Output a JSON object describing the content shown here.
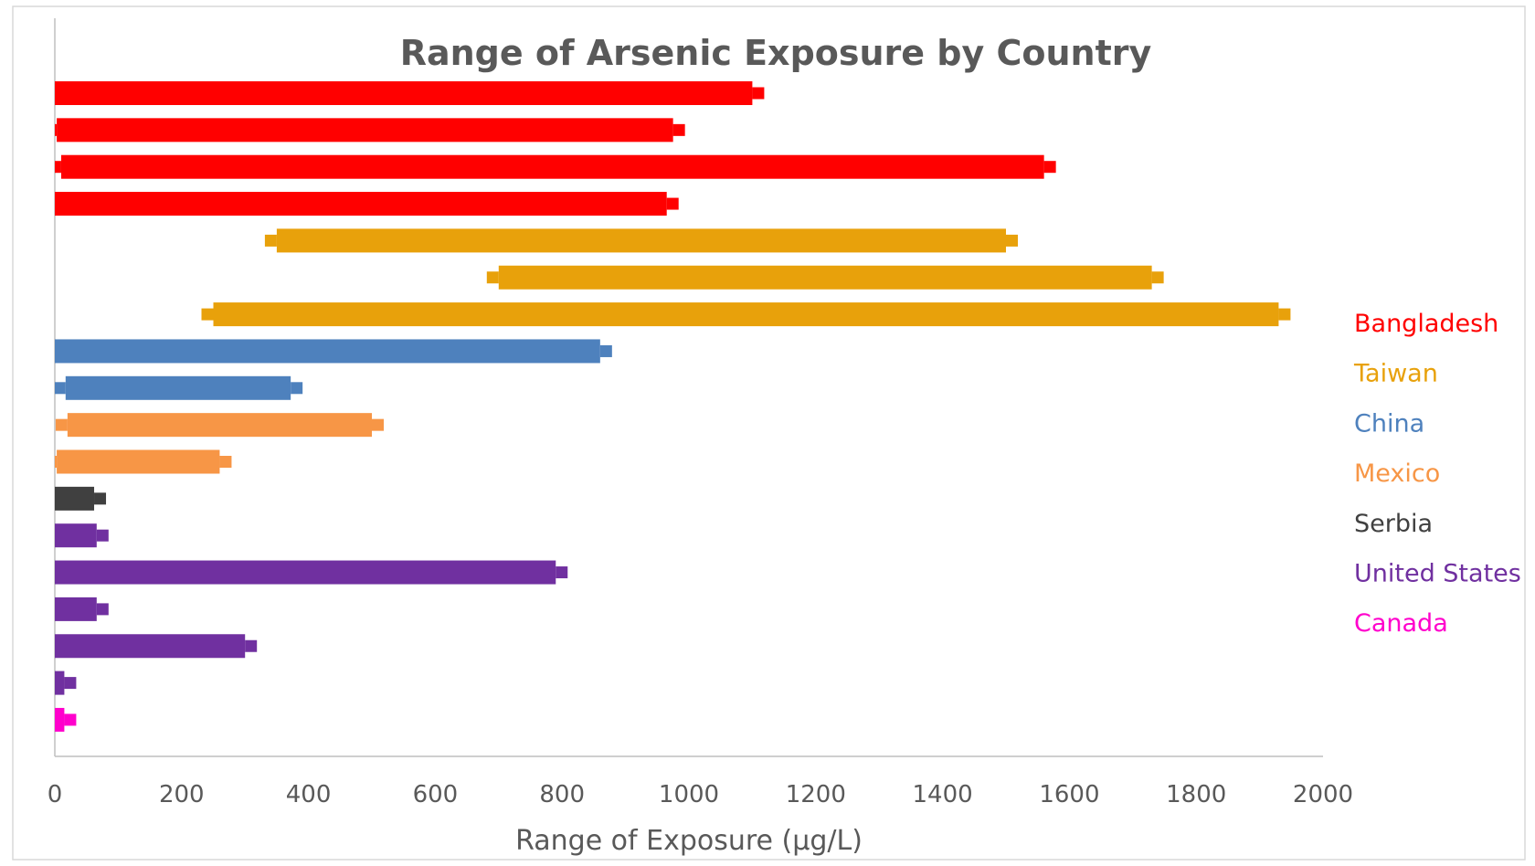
{
  "chart_data": {
    "type": "bar",
    "orientation": "horizontal",
    "title": "Range of Arsenic Exposure by Country",
    "xlabel": "Range of Exposure (µg/L)",
    "ylabel": "",
    "xlim": [
      0,
      2000
    ],
    "x_ticks": [
      0,
      200,
      400,
      600,
      800,
      1000,
      1200,
      1400,
      1600,
      1800,
      2000
    ],
    "grid": false,
    "legend_position": "right",
    "legend": [
      {
        "name": "Bangladesh",
        "color": "#ff0000"
      },
      {
        "name": "Taiwan",
        "color": "#e8a10b"
      },
      {
        "name": "China",
        "color": "#4e81bd"
      },
      {
        "name": "Mexico",
        "color": "#f79646"
      },
      {
        "name": "Serbia",
        "color": "#404040"
      },
      {
        "name": "United States",
        "color": "#7030a0"
      },
      {
        "name": "Canada",
        "color": "#ff00cc"
      }
    ],
    "ranges": [
      {
        "country": "Bangladesh",
        "min": 0,
        "max": 1100
      },
      {
        "country": "Bangladesh",
        "min": 3,
        "max": 975
      },
      {
        "country": "Bangladesh",
        "min": 10,
        "max": 1560
      },
      {
        "country": "Bangladesh",
        "min": 0,
        "max": 965
      },
      {
        "country": "Taiwan",
        "min": 350,
        "max": 1500
      },
      {
        "country": "Taiwan",
        "min": 700,
        "max": 1730
      },
      {
        "country": "Taiwan",
        "min": 250,
        "max": 1930
      },
      {
        "country": "China",
        "min": 0,
        "max": 860
      },
      {
        "country": "China",
        "min": 17,
        "max": 372
      },
      {
        "country": "Mexico",
        "min": 20,
        "max": 500
      },
      {
        "country": "Mexico",
        "min": 3,
        "max": 260
      },
      {
        "country": "Serbia",
        "min": 0,
        "max": 62
      },
      {
        "country": "United States",
        "min": 0,
        "max": 66
      },
      {
        "country": "United States",
        "min": 0,
        "max": 790
      },
      {
        "country": "United States",
        "min": 0,
        "max": 66
      },
      {
        "country": "United States",
        "min": 0,
        "max": 300
      },
      {
        "country": "United States",
        "min": 0,
        "max": 15
      },
      {
        "country": "Canada",
        "min": 0,
        "max": 15
      }
    ]
  }
}
